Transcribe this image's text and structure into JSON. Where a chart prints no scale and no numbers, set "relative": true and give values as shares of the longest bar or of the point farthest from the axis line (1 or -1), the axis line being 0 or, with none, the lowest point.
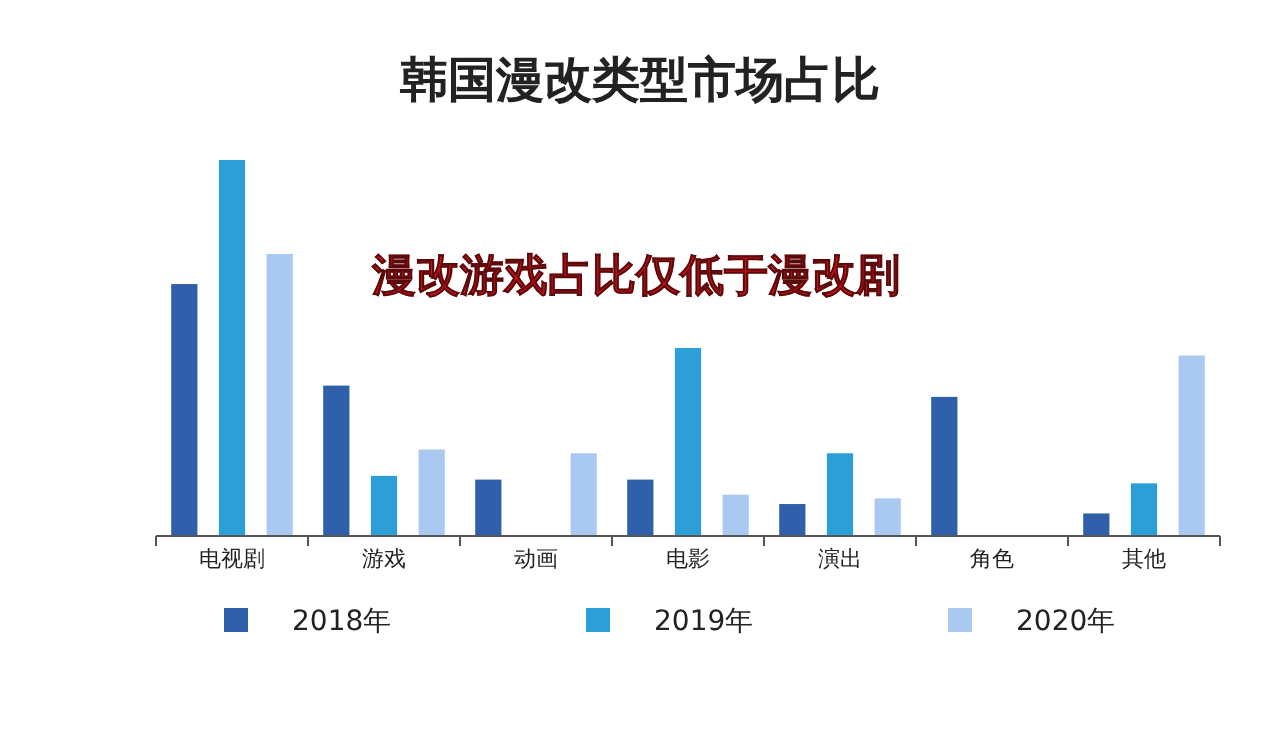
{
  "chart_data": {
    "type": "bar",
    "title": "韩国漫改类型市场占比",
    "relative": true,
    "legend": "bottom",
    "annotations": [
      "漫改游戏占比仅低于漫改剧"
    ],
    "categories": [
      "电视剧",
      "游戏",
      "动画",
      "电影",
      "演出",
      "角色",
      "其他"
    ],
    "series": [
      {
        "name": "2018年",
        "color": "#2e5fa8",
        "values": [
          0.67,
          0.4,
          0.15,
          0.15,
          0.085,
          0.37,
          0.06
        ]
      },
      {
        "name": "2019年",
        "color": "#2c9fd9",
        "values": [
          1,
          0.16,
          0,
          0.5,
          0.22,
          0,
          0.14
        ]
      },
      {
        "name": "2020年",
        "color": "#a9c9f0",
        "values": [
          0.75,
          0.23,
          0.22,
          0.11,
          0.1,
          0,
          0.48
        ]
      }
    ]
  }
}
